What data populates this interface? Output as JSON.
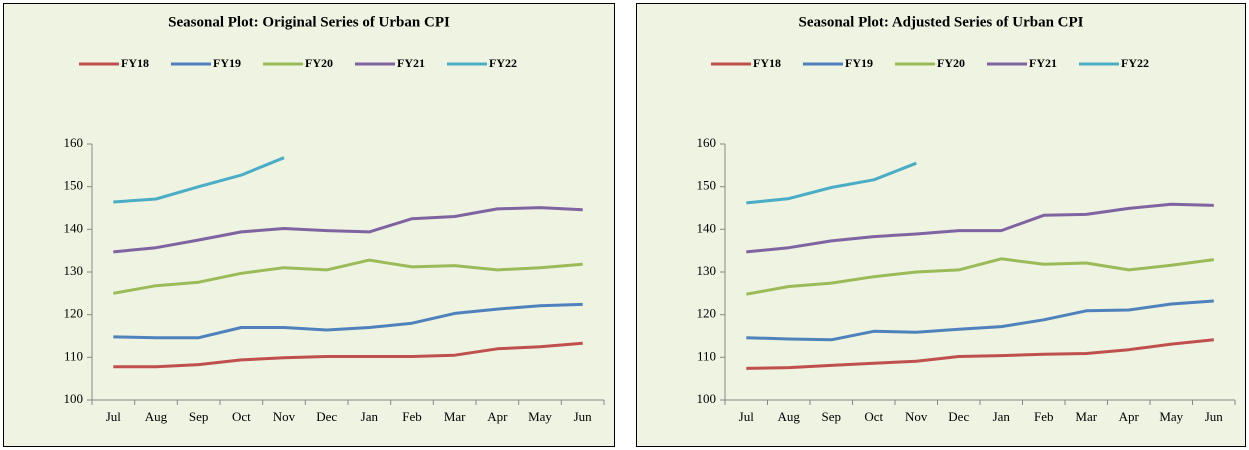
{
  "chart_data": [
    {
      "type": "line",
      "title": "Seasonal Plot: Original Series of  Urban CPI",
      "categories": [
        "Jul",
        "Aug",
        "Sep",
        "Oct",
        "Nov",
        "Dec",
        "Jan",
        "Feb",
        "Mar",
        "Apr",
        "May",
        "Jun"
      ],
      "ylim": [
        100,
        160
      ],
      "yticks": [
        100,
        110,
        120,
        130,
        140,
        150,
        160
      ],
      "legend": "top",
      "series": [
        {
          "name": "FY18",
          "color": "#c0504d",
          "values": [
            107.8,
            107.8,
            108.3,
            109.4,
            109.9,
            110.2,
            110.2,
            110.2,
            110.5,
            112.0,
            112.5,
            113.3
          ]
        },
        {
          "name": "FY19",
          "color": "#4f81bd",
          "values": [
            114.8,
            114.6,
            114.6,
            117.0,
            117.0,
            116.4,
            117.0,
            118.0,
            120.3,
            121.3,
            122.1,
            122.4
          ]
        },
        {
          "name": "FY20",
          "color": "#9bbb59",
          "values": [
            125.0,
            126.8,
            127.6,
            129.7,
            131.0,
            130.5,
            132.8,
            131.2,
            131.5,
            130.5,
            131.0,
            131.8
          ]
        },
        {
          "name": "FY21",
          "color": "#8064a2",
          "values": [
            134.7,
            135.7,
            137.5,
            139.4,
            140.2,
            139.7,
            139.4,
            142.5,
            143.0,
            144.8,
            145.1,
            144.6
          ]
        },
        {
          "name": "FY22",
          "color": "#4bacc6",
          "values": [
            146.4,
            147.1,
            150.0,
            152.7,
            156.8,
            null,
            null,
            null,
            null,
            null,
            null,
            null
          ]
        }
      ]
    },
    {
      "type": "line",
      "title": "Seasonal Plot: Adjusted Series of  Urban CPI",
      "categories": [
        "Jul",
        "Aug",
        "Sep",
        "Oct",
        "Nov",
        "Dec",
        "Jan",
        "Feb",
        "Mar",
        "Apr",
        "May",
        "Jun"
      ],
      "ylim": [
        100,
        160
      ],
      "yticks": [
        100,
        110,
        120,
        130,
        140,
        150,
        160
      ],
      "legend": "top",
      "series": [
        {
          "name": "FY18",
          "color": "#c0504d",
          "values": [
            107.4,
            107.6,
            108.1,
            108.6,
            109.1,
            110.2,
            110.4,
            110.7,
            110.9,
            111.8,
            113.1,
            114.1
          ]
        },
        {
          "name": "FY19",
          "color": "#4f81bd",
          "values": [
            114.6,
            114.3,
            114.1,
            116.1,
            115.9,
            116.6,
            117.2,
            118.8,
            120.9,
            121.1,
            122.5,
            123.2
          ]
        },
        {
          "name": "FY20",
          "color": "#9bbb59",
          "values": [
            124.8,
            126.6,
            127.4,
            128.9,
            130.0,
            130.5,
            133.1,
            131.8,
            132.1,
            130.5,
            131.6,
            132.9
          ]
        },
        {
          "name": "FY21",
          "color": "#8064a2",
          "values": [
            134.7,
            135.7,
            137.3,
            138.3,
            138.9,
            139.7,
            139.7,
            143.3,
            143.5,
            144.9,
            145.9,
            145.6
          ]
        },
        {
          "name": "FY22",
          "color": "#4bacc6",
          "values": [
            146.2,
            147.2,
            149.8,
            151.6,
            155.5,
            null,
            null,
            null,
            null,
            null,
            null,
            null
          ]
        }
      ]
    }
  ]
}
